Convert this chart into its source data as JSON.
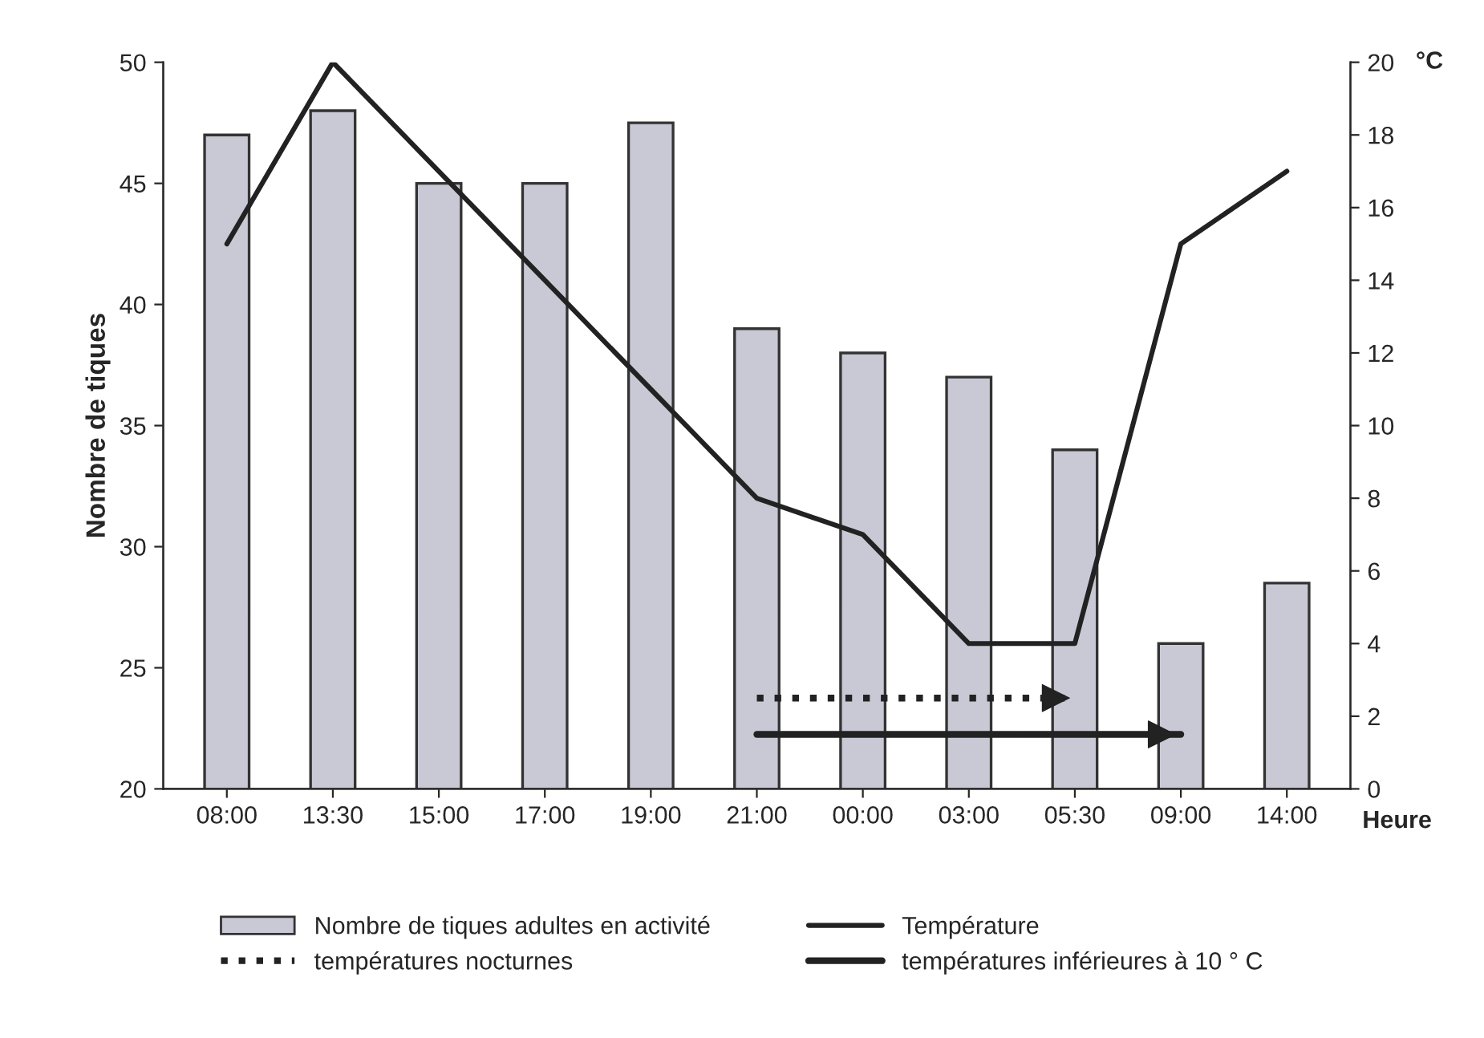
{
  "chart_data": {
    "type": "bar",
    "categories": [
      "08:00",
      "13:30",
      "15:00",
      "17:00",
      "19:00",
      "21:00",
      "00:00",
      "03:00",
      "05:30",
      "09:00",
      "14:00"
    ],
    "series": [
      {
        "name": "Nombre de tiques adultes en activité",
        "color": "#c9c9d6",
        "values": [
          47,
          48,
          45,
          45,
          47.5,
          39,
          38,
          37,
          34,
          26,
          28.5
        ]
      },
      {
        "name": "températures nocturnes",
        "type": "line",
        "axis": "y2",
        "color": "#222222",
        "line_style": "dotted",
        "values": [
          null,
          null,
          null,
          null,
          null,
          2.5,
          2.5,
          2.5,
          2.5,
          null,
          null
        ]
      },
      {
        "name": "Température",
        "type": "line",
        "axis": "y2",
        "color": "#222222",
        "line_style": "solid",
        "values": [
          15,
          20,
          17,
          14,
          11,
          8,
          7,
          4,
          4,
          15,
          17
        ]
      },
      {
        "name": "températures inférieures à 10 ° C",
        "type": "line",
        "axis": "y2",
        "color": "#222222",
        "line_style": "solid",
        "values": [
          null,
          null,
          null,
          null,
          null,
          1.5,
          1.5,
          1.5,
          1.5,
          1.5,
          null
        ]
      }
    ],
    "xlabel": "Heure",
    "ylabel": "Nombre de tiques",
    "y2label": "°C",
    "ylim": [
      20,
      50
    ],
    "yticks": [
      20,
      25,
      30,
      35,
      40,
      45,
      50
    ],
    "y2lim": [
      0,
      20
    ],
    "y2ticks": [
      0,
      2,
      4,
      6,
      8,
      10,
      12,
      14,
      16,
      18,
      20
    ],
    "grid": false,
    "legend": "bottom"
  }
}
